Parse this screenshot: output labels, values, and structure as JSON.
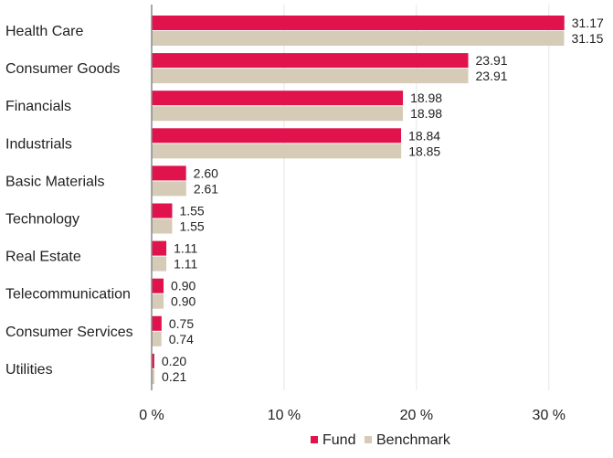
{
  "colors": {
    "fund": "#e0134c",
    "benchmark": "#d5cbb7",
    "grid": "#e6e6e6",
    "axis": "#8a8a8a"
  },
  "chart_data": {
    "type": "bar",
    "orientation": "horizontal",
    "categories": [
      "Health Care",
      "Consumer Goods",
      "Financials",
      "Industrials",
      "Basic Materials",
      "Technology",
      "Real Estate",
      "Telecommunication",
      "Consumer Services",
      "Utilities"
    ],
    "series": [
      {
        "name": "Fund",
        "values": [
          31.17,
          23.91,
          18.98,
          18.84,
          2.6,
          1.55,
          1.11,
          0.9,
          0.75,
          0.2
        ],
        "labels": [
          "31.17",
          "23.91",
          "18.98",
          "18.84",
          "2.60",
          "1.55",
          "1.11",
          "0.90",
          "0.75",
          "0.20"
        ]
      },
      {
        "name": "Benchmark",
        "values": [
          31.15,
          23.91,
          18.98,
          18.85,
          2.61,
          1.55,
          1.11,
          0.9,
          0.74,
          0.21
        ],
        "labels": [
          "31.15",
          "23.91",
          "18.98",
          "18.85",
          "2.61",
          "1.55",
          "1.11",
          "0.90",
          "0.74",
          "0.21"
        ]
      }
    ],
    "xlim": [
      0,
      34.5
    ],
    "xticks": [
      0,
      10,
      20,
      30
    ],
    "xtick_labels": [
      "0 %",
      "10 %",
      "20 %",
      "30 %"
    ],
    "grid": true,
    "legend_position": "bottom-right"
  }
}
